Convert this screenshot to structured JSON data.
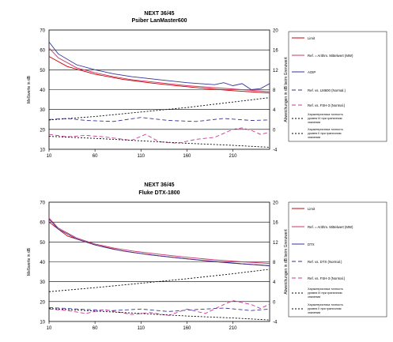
{
  "chart_data": [
    {
      "type": "line",
      "title": "NEXT 36/45",
      "subtitle": "Psiber LanMaster600",
      "ylabel": "Meßwerte in dB",
      "y2label": "Abweichungen in dB beim Grenzwert",
      "ylim": [
        10,
        70
      ],
      "y2lim": [
        -4,
        20
      ],
      "yticks": [
        "70",
        "60",
        "50",
        "40",
        "30",
        "20",
        "10"
      ],
      "y2ticks": [
        "20",
        "16",
        "12",
        "8",
        "4",
        "0",
        "-4"
      ],
      "xlim": [
        10,
        250
      ],
      "xticks": [
        "10",
        "60",
        "110",
        "160",
        "210"
      ],
      "grid": true,
      "legend": [
        "Limit",
        "Ref. = Arithm. Mittelwert (MW)",
        "AOIP",
        "Ref. vs. LM600 (Normal.)",
        "Ref. vs. FSH-3 (Normal.)",
        "Характеристика точность уровня III при граничном значении",
        "Характеристика точность уровня II при граничном значении"
      ],
      "series": [
        {
          "name": "Limit",
          "axis": "left",
          "color": "#cc0000",
          "dash": "",
          "x": [
            10,
            30,
            60,
            90,
            120,
            150,
            180,
            210,
            240,
            250
          ],
          "y": [
            56.7,
            51.6,
            47.8,
            45.2,
            43.4,
            41.9,
            40.6,
            39.5,
            38.6,
            38.3
          ]
        },
        {
          "name": "Ref. = Arithm. Mittelwert (MW)",
          "axis": "left",
          "color": "#cc3366",
          "dash": "",
          "x": [
            10,
            20,
            40,
            60,
            80,
            100,
            130,
            160,
            190,
            220,
            250
          ],
          "y": [
            61,
            56,
            51,
            48.5,
            46.5,
            45,
            43.5,
            42,
            41,
            40,
            39
          ]
        },
        {
          "name": "AOIP",
          "axis": "left",
          "color": "#333399",
          "dash": "",
          "x": [
            10,
            20,
            40,
            60,
            80,
            100,
            130,
            160,
            190,
            200,
            210,
            220,
            230,
            240,
            250
          ],
          "y": [
            64,
            58,
            52.5,
            50,
            48,
            46.5,
            45,
            43.5,
            42.5,
            43.5,
            42,
            43,
            40,
            40.5,
            43
          ]
        },
        {
          "name": "Ref. vs. LM600 (Normal.)",
          "axis": "right",
          "color": "#333399",
          "dash": "5,3",
          "x": [
            10,
            30,
            50,
            80,
            110,
            140,
            170,
            200,
            230,
            250
          ],
          "y": [
            2,
            2.2,
            1.8,
            1.6,
            2.4,
            1.8,
            1.6,
            2.2,
            1.8,
            1.9
          ]
        },
        {
          "name": "Ref. vs. FSH-3 (Normal.)",
          "axis": "right",
          "color": "#cc3399",
          "dash": "5,3",
          "x": [
            10,
            30,
            50,
            70,
            100,
            115,
            130,
            150,
            170,
            190,
            210,
            220,
            230,
            240,
            250
          ],
          "y": [
            -1,
            -1.5,
            -1.2,
            -1.5,
            -2.2,
            -1,
            -2.5,
            -2.8,
            -2,
            -1.6,
            0,
            0.3,
            -0.2,
            -1,
            -0.6
          ]
        },
        {
          "name": "Характеристика точность уровня III при граничном значении",
          "axis": "right",
          "color": "#000000",
          "dash": "2,2",
          "x": [
            10,
            60,
            110,
            160,
            210,
            250
          ],
          "y": [
            1.9,
            2.6,
            3.5,
            4.4,
            5.5,
            6.4
          ]
        },
        {
          "name": "Характеристика точность уровня II при граничном значении",
          "axis": "right",
          "color": "#000000",
          "dash": "2,2",
          "x": [
            10,
            60,
            110,
            160,
            210,
            250
          ],
          "y": [
            -1.4,
            -1.8,
            -2.3,
            -2.8,
            -3.2,
            -3.6
          ]
        }
      ]
    },
    {
      "type": "line",
      "title": "NEXT 36/45",
      "subtitle": "Fluke DTX-1800",
      "ylabel": "Meßwerte in dB",
      "y2label": "Abweichungen in dB beim Grenzwert",
      "ylim": [
        10,
        70
      ],
      "y2lim": [
        -4,
        20
      ],
      "yticks": [
        "70",
        "60",
        "50",
        "40",
        "30",
        "20",
        "10"
      ],
      "y2ticks": [
        "20",
        "16",
        "12",
        "8",
        "4",
        "0",
        "-4"
      ],
      "xlim": [
        10,
        250
      ],
      "xticks": [
        "10",
        "60",
        "110",
        "160",
        "210"
      ],
      "grid": true,
      "legend": [
        "Limit",
        "Ref. = Arithm. Mittelwert (MW)",
        "DTX",
        "Ref. vs. DTX (Normal.)",
        "Ref. vs. FSH-3 (Normal.)",
        "Характеристика точность уровня III при граничном значении",
        "Характеристика точность уровня II при граничном значении"
      ],
      "series": [
        {
          "name": "Limit",
          "axis": "left",
          "color": "#cc0000",
          "dash": "",
          "x": [
            10,
            30,
            60,
            90,
            120,
            150,
            180,
            210,
            240,
            250
          ],
          "y": [
            60,
            53,
            48.5,
            45.5,
            43.5,
            42,
            40.5,
            39.3,
            38.4,
            38
          ]
        },
        {
          "name": "Ref. = Arithm. Mittelwert (MW)",
          "axis": "left",
          "color": "#cc3366",
          "dash": "",
          "x": [
            10,
            20,
            40,
            60,
            80,
            100,
            130,
            160,
            190,
            220,
            250
          ],
          "y": [
            62,
            57,
            52,
            49,
            47,
            45.5,
            43.8,
            42.3,
            41,
            40,
            39.2
          ]
        },
        {
          "name": "DTX",
          "axis": "left",
          "color": "#333399",
          "dash": "",
          "x": [
            10,
            20,
            40,
            60,
            80,
            100,
            130,
            160,
            190,
            220,
            250
          ],
          "y": [
            61.5,
            56.5,
            51.5,
            48.5,
            46.3,
            44.8,
            43,
            41.5,
            40.2,
            39,
            38
          ]
        },
        {
          "name": "Ref. vs. DTX (Normal.)",
          "axis": "right",
          "color": "#333399",
          "dash": "5,3",
          "x": [
            10,
            30,
            50,
            80,
            110,
            140,
            170,
            200,
            230,
            250
          ],
          "y": [
            -1.2,
            -1.4,
            -1.6,
            -1.8,
            -1.5,
            -2,
            -1.6,
            -1.3,
            -1.8,
            -1.5
          ]
        },
        {
          "name": "Ref. vs. FSH-3 (Normal.)",
          "axis": "right",
          "color": "#cc3399",
          "dash": "5,3",
          "x": [
            10,
            30,
            50,
            70,
            100,
            120,
            140,
            160,
            180,
            200,
            210,
            220,
            230,
            240,
            250
          ],
          "y": [
            -1.5,
            -1.8,
            -2.4,
            -1.6,
            -2.6,
            -2.2,
            -2.8,
            -1.5,
            -2.4,
            -0.6,
            0.2,
            -0.2,
            -0.6,
            -1.4,
            -0.5
          ]
        },
        {
          "name": "Характеристика точность уровня III при граничном значении",
          "axis": "right",
          "color": "#000000",
          "dash": "2,2",
          "x": [
            10,
            60,
            110,
            160,
            210,
            250
          ],
          "y": [
            2,
            2.8,
            3.7,
            4.6,
            5.6,
            6.5
          ]
        },
        {
          "name": "Характеристика точность уровня II при граничном значении",
          "axis": "right",
          "color": "#000000",
          "dash": "2,2",
          "x": [
            10,
            60,
            110,
            160,
            210,
            250
          ],
          "y": [
            -1.4,
            -1.9,
            -2.4,
            -2.9,
            -3.3,
            -3.7
          ]
        }
      ]
    }
  ]
}
